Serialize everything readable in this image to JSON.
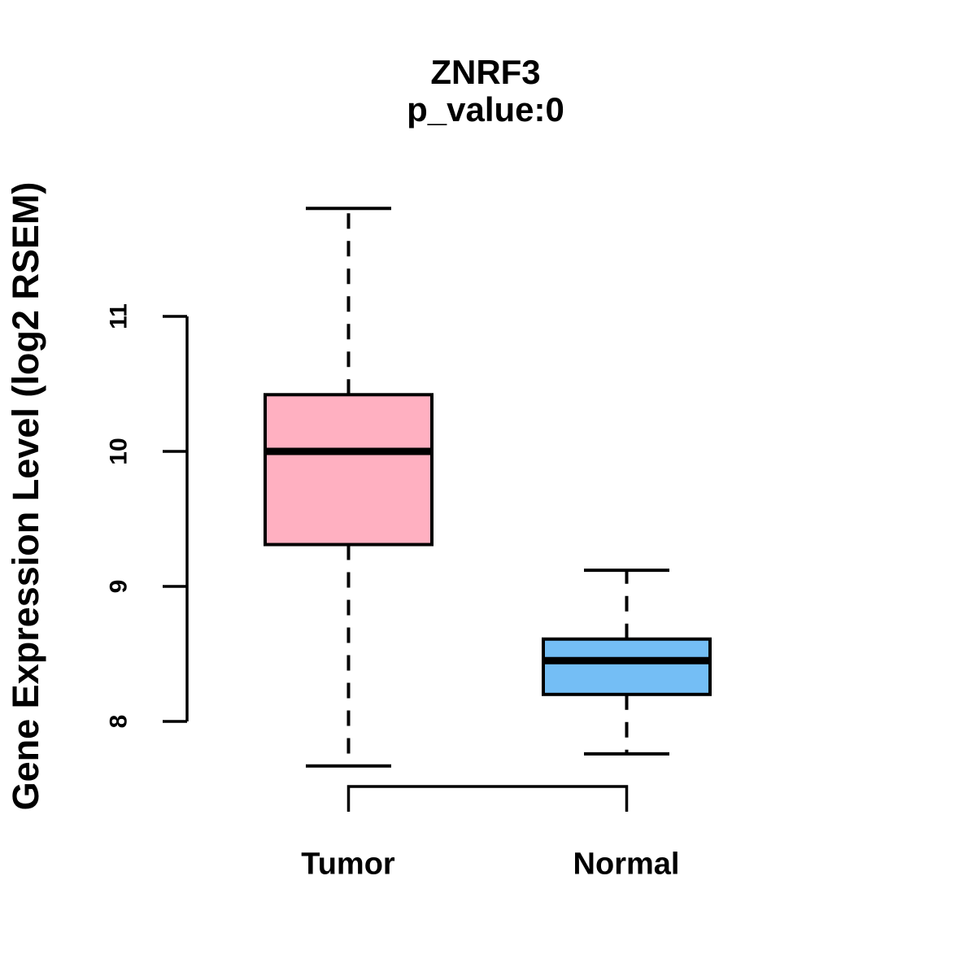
{
  "chart_data": {
    "type": "boxplot",
    "title": "ZNRF3",
    "subtitle": "p_value:0",
    "ylabel": "Gene Expression Level (log2 RSEM)",
    "xlabel": "",
    "yticks": [
      "8",
      "9",
      "10",
      "11"
    ],
    "ylim": [
      7.4,
      12.0
    ],
    "grid": false,
    "legend": "none",
    "categories": [
      "Tumor",
      "Normal"
    ],
    "series": [
      {
        "name": "Tumor",
        "color": "#FFB0C1",
        "lower_whisker": 7.67,
        "q1": 9.31,
        "median": 10.0,
        "q3": 10.42,
        "upper_whisker": 11.8,
        "outliers": []
      },
      {
        "name": "Normal",
        "color": "#74BEF5",
        "lower_whisker": 7.76,
        "q1": 8.2,
        "median": 8.45,
        "q3": 8.61,
        "upper_whisker": 9.12,
        "outliers": []
      }
    ],
    "colors": {
      "box_border": "#000000",
      "median": "#000000",
      "whisker": "#000000",
      "axis": "#000000",
      "text": "#000000",
      "background": "#FFFFFF"
    }
  }
}
